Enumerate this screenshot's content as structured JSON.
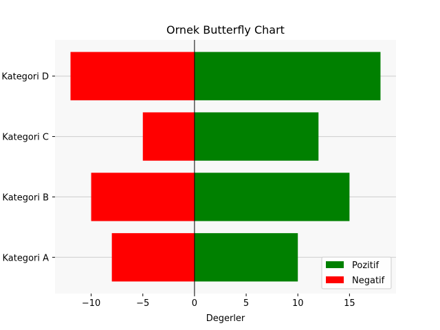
{
  "chart_data": {
    "type": "bar",
    "orientation": "horizontal",
    "title": "Ornek Butterfly Chart",
    "xlabel": "Degerler",
    "ylabel": "",
    "categories": [
      "Kategori A",
      "Kategori B",
      "Kategori C",
      "Kategori D"
    ],
    "series": [
      {
        "name": "Pozitif",
        "values": [
          10,
          15,
          12,
          18
        ],
        "color": "#008000"
      },
      {
        "name": "Negatif",
        "values": [
          -8,
          -10,
          -5,
          -12
        ],
        "color": "#ff0000"
      }
    ],
    "xlim": [
      -13.5,
      19.5
    ],
    "xticks": [
      -10,
      -5,
      0,
      5,
      10,
      15
    ],
    "xtick_labels": [
      "−10",
      "−5",
      "0",
      "5",
      "10",
      "15"
    ],
    "grid": "horizontal",
    "zero_line": true,
    "legend_position": "lower-right",
    "background": "#f8f8f8"
  }
}
